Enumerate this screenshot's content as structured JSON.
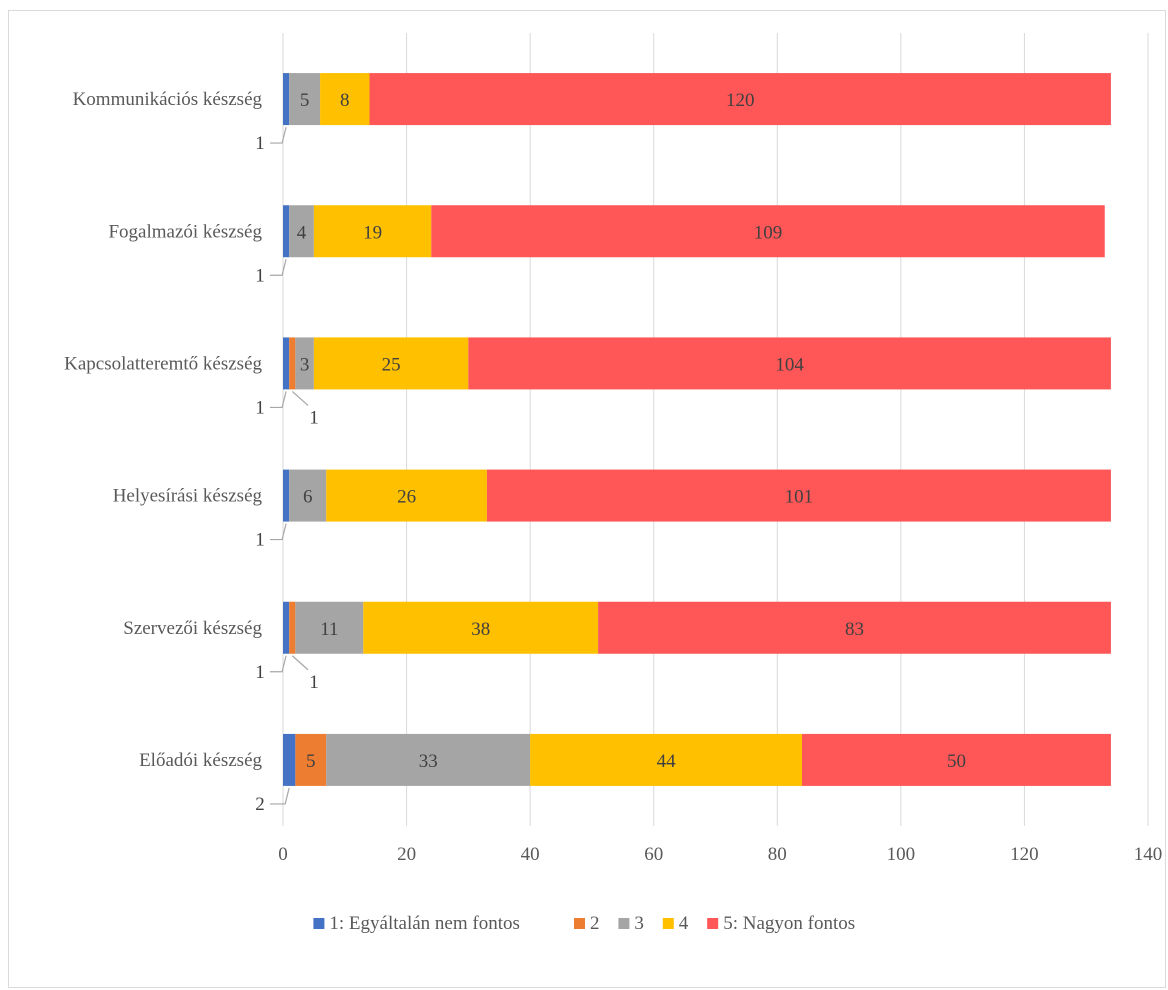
{
  "chart_data": {
    "type": "bar",
    "orientation": "horizontal",
    "stacked": true,
    "title": "",
    "xlabel": "",
    "ylabel": "",
    "categories": [
      "Kommunikációs készség",
      "Fogalmazói készség",
      "Kapcsolatteremtő készség",
      "Helyesírási készség",
      "Szervezői készség",
      "Előadói készség"
    ],
    "series": [
      {
        "name": "1: Egyáltalán nem fontos",
        "color": "#4472c4",
        "values": [
          1,
          1,
          1,
          1,
          1,
          2
        ]
      },
      {
        "name": "2",
        "color": "#ed7d31",
        "values": [
          0,
          0,
          1,
          0,
          1,
          5
        ]
      },
      {
        "name": "3",
        "color": "#a5a5a5",
        "values": [
          5,
          4,
          3,
          6,
          11,
          33
        ]
      },
      {
        "name": "4",
        "color": "#ffc000",
        "values": [
          8,
          19,
          25,
          26,
          38,
          44
        ]
      },
      {
        "name": "5: Nagyon fontos",
        "color": "#ff5757",
        "values": [
          120,
          109,
          104,
          101,
          83,
          50
        ]
      }
    ],
    "xlim": [
      0,
      140
    ],
    "xticks": [
      0,
      20,
      40,
      60,
      80,
      100,
      120,
      140
    ],
    "grid": "vertical",
    "legend_position": "bottom",
    "data_labels": true,
    "label_color": "#404040",
    "grid_color": "#d9d9d9",
    "tick_label_color": "#595959"
  }
}
